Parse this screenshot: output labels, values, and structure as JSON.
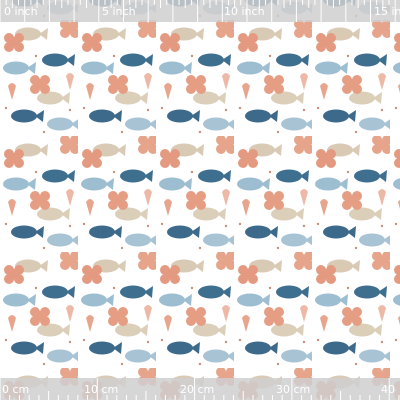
{
  "top_ruler": {
    "labels": [
      "0 inch",
      "5 inch",
      "10 inch",
      "15 in"
    ]
  },
  "bottom_ruler": {
    "labels": [
      "0 cm",
      "10 cm",
      "20 cm",
      "30 cm",
      "40"
    ]
  }
}
